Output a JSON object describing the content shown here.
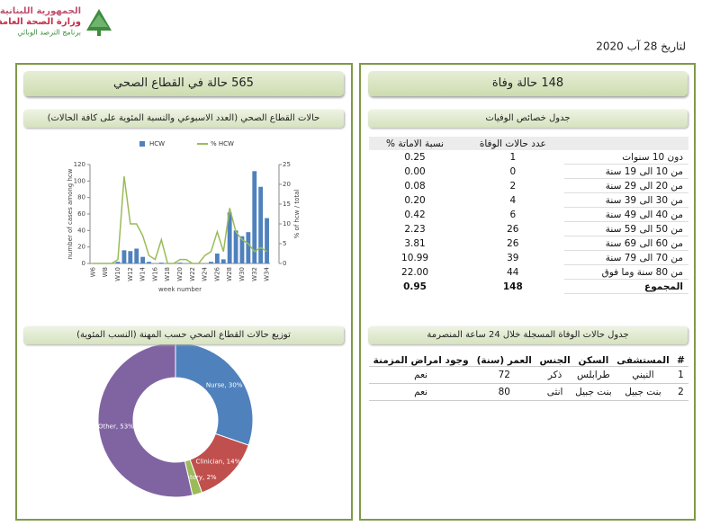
{
  "header": {
    "ministry_lines": [
      "الجمهورية اللبنانية",
      "وزارة الصحة العامة",
      "برنامج الترصد الوبائي"
    ],
    "date": "لتاريخ 28 آب 2020"
  },
  "left_panel": {
    "title": "565 حالة في القطاع الصحي",
    "chart_title": "حالات القطاع الصحي (العدد الاسبوعي والنسبة المئوية على كافة الحالات)",
    "pie_title": "توزيع حالات القطاع الصحي حسب المهنة (النسب المئوية)"
  },
  "right_panel": {
    "title": "148 حالة وفاة",
    "table_title": "جدول خصائص الوفيات",
    "table2_title": "جدول حالات الوفاة المسجلة خلال 24 ساعة المنصرمة"
  },
  "deaths_by_age": {
    "columns": [
      "عدد حالات الوفاة",
      "نسبة الاماتة %"
    ],
    "rows": [
      [
        "دون 10 سنوات",
        "1",
        "0.25"
      ],
      [
        "من 10 الى 19 سنة",
        "0",
        "0.00"
      ],
      [
        "من 20 الى 29 سنة",
        "2",
        "0.08"
      ],
      [
        "من 30 الى 39 سنة",
        "4",
        "0.20"
      ],
      [
        "من 40 الى 49 سنة",
        "6",
        "0.42"
      ],
      [
        "من 50 الى 59 سنة",
        "26",
        "2.23"
      ],
      [
        "من 60 الى 69 سنة",
        "26",
        "3.81"
      ],
      [
        "من 70 الى 79 سنة",
        "39",
        "10.99"
      ],
      [
        "من 80 سنة وما فوق",
        "44",
        "22.00"
      ],
      [
        "المجموع",
        "148",
        "0.95"
      ]
    ]
  },
  "recent_deaths": {
    "columns": [
      "#",
      "المستشفى",
      "السكن",
      "الجنس",
      "العمر (سنة)",
      "وجود امراض المزمنة"
    ],
    "rows": [
      [
        "1",
        "النيني",
        "طرابلس",
        "ذكر",
        "72",
        "نعم"
      ],
      [
        "2",
        "بنت جبيل",
        "بنت جبيل",
        "انثى",
        "80",
        "نعم"
      ]
    ]
  },
  "chart_data": [
    {
      "type": "bar",
      "x_label": "week number",
      "y_label": "number of cases among hcw",
      "y2_label": "% of hcw / total",
      "categories": [
        "W6",
        null,
        "W8",
        null,
        "W10",
        null,
        "W12",
        null,
        "W14",
        null,
        "W16",
        null,
        "W18",
        null,
        "W20",
        null,
        "W22",
        null,
        "W24",
        null,
        "W26",
        null,
        "W28",
        null,
        "W30",
        null,
        "W32",
        null,
        "W34"
      ],
      "ylim": [
        0,
        120
      ],
      "yticks": [
        0,
        20,
        40,
        60,
        80,
        100,
        120
      ],
      "y2lim": [
        0,
        25
      ],
      "y2ticks": [
        0,
        5,
        10,
        15,
        20,
        25
      ],
      "legend": "top",
      "series": [
        {
          "name": "HCW",
          "color": "#4f81bd",
          "values": [
            0,
            0,
            0,
            0,
            2,
            16,
            15,
            18,
            8,
            2,
            0,
            1,
            0,
            0,
            1,
            0,
            0,
            0,
            0,
            2,
            12,
            5,
            62,
            40,
            33,
            38,
            112,
            93,
            55
          ]
        },
        {
          "name": "% HCW",
          "color": "#9bbb59",
          "type": "line",
          "axis": "y2",
          "values": [
            0,
            0,
            0,
            0,
            1,
            22,
            10,
            10,
            7,
            2,
            1,
            6,
            0,
            0,
            1,
            1,
            0,
            0,
            2,
            3,
            8,
            3,
            14,
            8,
            6,
            5,
            3,
            4,
            3
          ]
        }
      ]
    },
    {
      "type": "pie",
      "donut": true,
      "values": [
        30,
        14,
        2,
        53
      ],
      "value_labels": [
        "Nurse, 30%",
        "Clinician, 14%",
        "Laboratory, 2%",
        "Other, 53%"
      ],
      "colors": [
        "#4f81bd",
        "#c0504d",
        "#9bbb59",
        "#8064a2"
      ]
    }
  ]
}
